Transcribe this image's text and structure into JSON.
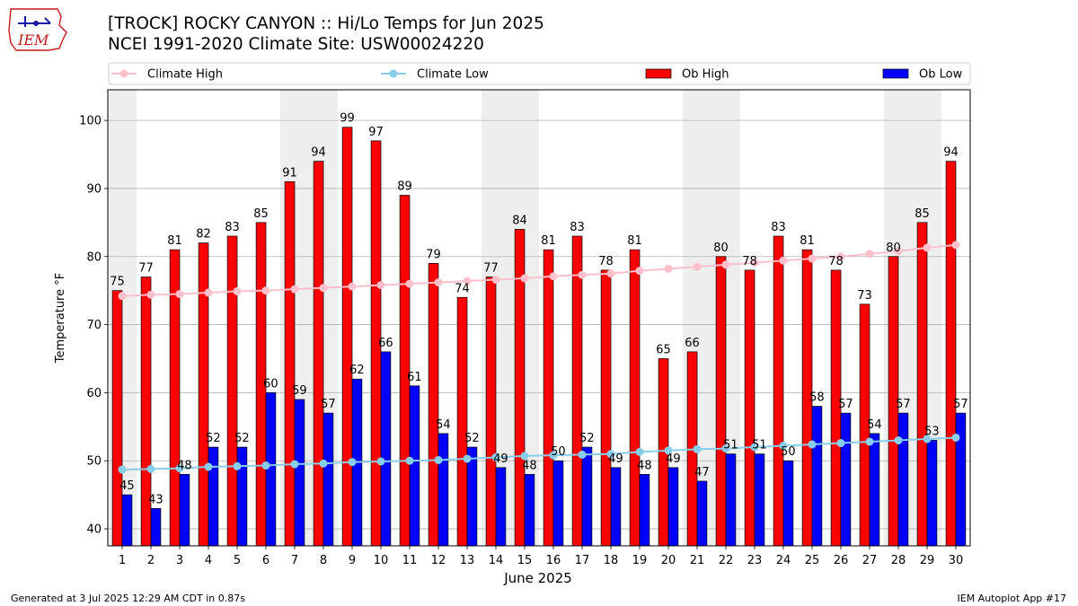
{
  "logo": {
    "text": "IEM"
  },
  "title_line1": "[TROCK] ROCKY CANYON  :: Hi/Lo Temps for Jun 2025",
  "title_line2": "NCEI 1991-2020 Climate Site: USW00024220",
  "footer_left": "Generated at 3 Jul 2025 12:29 AM CDT in 0.87s",
  "footer_right": "IEM Autoplot App #17",
  "chart_data": {
    "type": "bar",
    "xlabel": "June 2025",
    "ylabel": "Temperature °F",
    "ylim": [
      37.5,
      104.5
    ],
    "yticks": [
      40,
      50,
      60,
      70,
      80,
      90,
      100
    ],
    "grid": "horizontal",
    "legend_placement": "top",
    "categories": [
      "1",
      "2",
      "3",
      "4",
      "5",
      "6",
      "7",
      "8",
      "9",
      "10",
      "11",
      "12",
      "13",
      "14",
      "15",
      "16",
      "17",
      "18",
      "19",
      "20",
      "21",
      "22",
      "23",
      "24",
      "25",
      "26",
      "27",
      "28",
      "29",
      "30"
    ],
    "weekend_days": [
      1,
      7,
      8,
      14,
      15,
      21,
      22,
      28,
      29
    ],
    "series": [
      {
        "name": "Ob High",
        "kind": "bar",
        "color": "#ff0000",
        "values": [
          75,
          77,
          81,
          82,
          83,
          85,
          91,
          94,
          99,
          97,
          89,
          79,
          74,
          77,
          84,
          81,
          83,
          78,
          81,
          65,
          66,
          80,
          78,
          83,
          81,
          78,
          73,
          80,
          85,
          94
        ]
      },
      {
        "name": "Ob Low",
        "kind": "bar",
        "color": "#0000ff",
        "values": [
          45,
          43,
          48,
          52,
          52,
          60,
          59,
          57,
          62,
          66,
          61,
          54,
          52,
          49,
          48,
          50,
          52,
          49,
          48,
          49,
          47,
          51,
          51,
          50,
          58,
          57,
          54,
          57,
          53,
          57
        ]
      },
      {
        "name": "Climate High",
        "kind": "line",
        "color": "#ffc0cb",
        "values": [
          74.2,
          74.4,
          74.5,
          74.7,
          74.9,
          75.0,
          75.2,
          75.4,
          75.6,
          75.8,
          76.0,
          76.2,
          76.4,
          76.6,
          76.8,
          77.1,
          77.3,
          77.5,
          77.9,
          78.2,
          78.5,
          78.8,
          79.1,
          79.4,
          79.7,
          80.0,
          80.4,
          80.8,
          81.3,
          81.7
        ]
      },
      {
        "name": "Climate Low",
        "kind": "line",
        "color": "#87ceeb",
        "values": [
          48.7,
          48.8,
          48.9,
          49.1,
          49.2,
          49.3,
          49.5,
          49.6,
          49.8,
          49.9,
          50.0,
          50.1,
          50.3,
          50.5,
          50.7,
          50.8,
          50.9,
          51.0,
          51.3,
          51.5,
          51.7,
          51.8,
          52.0,
          52.2,
          52.4,
          52.6,
          52.8,
          53.0,
          53.2,
          53.4
        ]
      }
    ]
  }
}
